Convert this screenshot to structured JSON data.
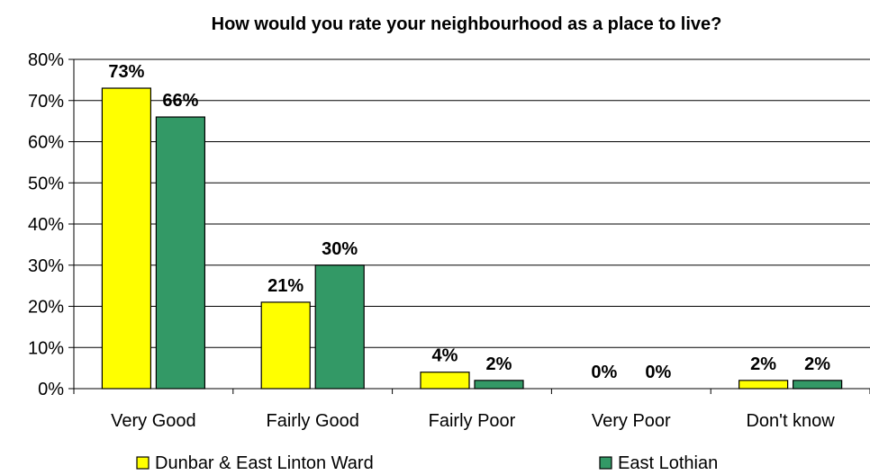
{
  "chart_data": {
    "type": "bar",
    "title": "How would you rate your neighbourhood as a place to live?",
    "categories": [
      "Very Good",
      "Fairly Good",
      "Fairly Poor",
      "Very Poor",
      "Don't know"
    ],
    "series": [
      {
        "name": "Dunbar & East Linton Ward",
        "values": [
          73,
          21,
          4,
          0,
          2
        ],
        "labels": [
          "73%",
          "21%",
          "4%",
          "0%",
          "2%"
        ],
        "color": "#ffff00"
      },
      {
        "name": "East Lothian",
        "values": [
          66,
          30,
          2,
          0,
          2
        ],
        "labels": [
          "66%",
          "30%",
          "2%",
          "0%",
          "2%"
        ],
        "color": "#339966"
      }
    ],
    "ylim": [
      0,
      80
    ],
    "yticks": [
      0,
      10,
      20,
      30,
      40,
      50,
      60,
      70,
      80
    ],
    "ytick_labels": [
      "0%",
      "10%",
      "20%",
      "30%",
      "40%",
      "50%",
      "60%",
      "70%",
      "80%"
    ],
    "grid": true,
    "legend_position": "bottom"
  }
}
